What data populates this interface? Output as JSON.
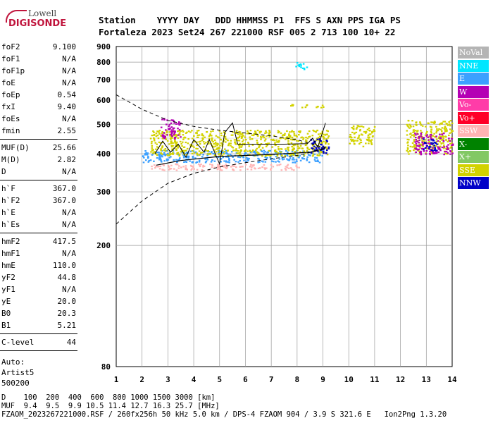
{
  "logo": {
    "line1": "Lowell",
    "line2": "DIGISONDE"
  },
  "header": {
    "labels": "Station    YYYY DAY   DDD HHMMSS P1  FFS S AXN PPS IGA PS",
    "values": "Fortaleza 2023 Set24 267 221000 RSF 005 2 713 100 10+ 22"
  },
  "params": {
    "group1": [
      {
        "name": "foF2",
        "value": "9.100"
      },
      {
        "name": "foF1",
        "value": "N/A"
      },
      {
        "name": "foF1p",
        "value": "N/A"
      },
      {
        "name": "foE",
        "value": "N/A"
      },
      {
        "name": "foEp",
        "value": "0.54"
      },
      {
        "name": "fxI",
        "value": "9.40"
      },
      {
        "name": "foEs",
        "value": "N/A"
      },
      {
        "name": "fmin",
        "value": "2.55"
      }
    ],
    "group2": [
      {
        "name": "MUF(D)",
        "value": "25.66"
      },
      {
        "name": "M(D)",
        "value": "2.82"
      },
      {
        "name": "D",
        "value": "N/A"
      }
    ],
    "group3": [
      {
        "name": "h`F",
        "value": "367.0"
      },
      {
        "name": "h`F2",
        "value": "367.0"
      },
      {
        "name": "h`E",
        "value": "N/A"
      },
      {
        "name": "h`Es",
        "value": "N/A"
      }
    ],
    "group4": [
      {
        "name": "hmF2",
        "value": "417.5"
      },
      {
        "name": "hmF1",
        "value": "N/A"
      },
      {
        "name": "hmE",
        "value": "110.0"
      },
      {
        "name": "yF2",
        "value": "44.8"
      },
      {
        "name": "yF1",
        "value": "N/A"
      },
      {
        "name": "yE",
        "value": "20.0"
      },
      {
        "name": "B0",
        "value": "20.3"
      },
      {
        "name": "B1",
        "value": "5.21"
      }
    ],
    "group5": [
      {
        "name": "C-level",
        "value": "44"
      }
    ],
    "auto": [
      "Auto:",
      "Artist5",
      "500200"
    ]
  },
  "legend": [
    {
      "label": "NoVal",
      "color": "#b4b4b4"
    },
    {
      "label": "NNE",
      "color": "#00e6ff"
    },
    {
      "label": "E",
      "color": "#3ca0ff"
    },
    {
      "label": "W",
      "color": "#b400b4"
    },
    {
      "label": "Vo-",
      "color": "#ff3ca8"
    },
    {
      "label": "Vo+",
      "color": "#ff0028"
    },
    {
      "label": "SSW",
      "color": "#ffb4b4"
    },
    {
      "label": "X-",
      "color": "#008200"
    },
    {
      "label": "X+",
      "color": "#82c864"
    },
    {
      "label": "SSE",
      "color": "#d2d200"
    },
    {
      "label": "NNW",
      "color": "#0000c8"
    }
  ],
  "footer": {
    "line1": "D    100  200  400  600  800 1000 1500 3000 [km]",
    "line2": "MUF  9.4  9.5  9.9 10.5 11.4 12.7 16.3 25.7 [MHz]",
    "line3": "FZAOM_2023267221000.RSF / 260fx256h 50 kHz 5.0 km / DPS-4 FZAOM 904 / 3.9 S 321.6 E   Ion2Png 1.3.20"
  },
  "chart_data": {
    "type": "scatter",
    "title": "",
    "xlabel": "",
    "ylabel": "",
    "xlim": [
      1,
      14
    ],
    "ylim": [
      80,
      900
    ],
    "x_ticks": [
      1,
      2,
      3,
      4,
      5,
      6,
      7,
      8,
      9,
      10,
      11,
      12,
      13,
      14
    ],
    "y_ticks": [
      80,
      200,
      300,
      400,
      500,
      600,
      700,
      800,
      900
    ],
    "y_scale": "log",
    "grid": true,
    "echo_clusters": [
      {
        "name": "SSW",
        "color": "#ffb4b4",
        "x": [
          2.3,
          8.2
        ],
        "y": [
          355,
          372
        ]
      },
      {
        "name": "E",
        "color": "#3ca0ff",
        "x": [
          2.0,
          9.0
        ],
        "y": [
          376,
          412
        ]
      },
      {
        "name": "SSE",
        "color": "#d2d200",
        "x": [
          2.3,
          9.2
        ],
        "y": [
          395,
          480
        ]
      },
      {
        "name": "W",
        "color": "#b400b4",
        "x": [
          2.7,
          3.5
        ],
        "y": [
          450,
          525
        ]
      },
      {
        "name": "SSE",
        "color": "#d2d200",
        "x": [
          7.7,
          9.0
        ],
        "y": [
          570,
          583
        ]
      },
      {
        "name": "NNE",
        "color": "#00e6ff",
        "x": [
          7.9,
          8.4
        ],
        "y": [
          760,
          800
        ]
      },
      {
        "name": "SSE",
        "color": "#d2d200",
        "x": [
          10.0,
          11.0
        ],
        "y": [
          425,
          500
        ]
      },
      {
        "name": "SSE",
        "color": "#d2d200",
        "x": [
          12.2,
          14.0
        ],
        "y": [
          400,
          520
        ]
      },
      {
        "name": "W",
        "color": "#b400b4",
        "x": [
          12.5,
          14.0
        ],
        "y": [
          400,
          470
        ]
      },
      {
        "name": "NNW",
        "color": "#0000c8",
        "x": [
          8.5,
          9.2
        ],
        "y": [
          400,
          450
        ]
      },
      {
        "name": "NNW",
        "color": "#0000c8",
        "x": [
          12.8,
          13.4
        ],
        "y": [
          410,
          450
        ]
      }
    ],
    "profile": [
      {
        "x": 2.55,
        "y": 367
      },
      {
        "x": 3.5,
        "y": 380
      },
      {
        "x": 5.0,
        "y": 392
      },
      {
        "x": 7.0,
        "y": 398
      },
      {
        "x": 8.5,
        "y": 405
      },
      {
        "x": 9.1,
        "y": 417.5
      }
    ],
    "virtual_trace": [
      {
        "x": 2.5,
        "y": 400
      },
      {
        "x": 2.8,
        "y": 440
      },
      {
        "x": 3.1,
        "y": 405
      },
      {
        "x": 3.4,
        "y": 430
      },
      {
        "x": 3.7,
        "y": 390
      },
      {
        "x": 4.0,
        "y": 445
      },
      {
        "x": 4.4,
        "y": 405
      },
      {
        "x": 4.6,
        "y": 445
      },
      {
        "x": 5.0,
        "y": 370
      },
      {
        "x": 5.2,
        "y": 470
      },
      {
        "x": 5.5,
        "y": 505
      },
      {
        "x": 5.7,
        "y": 430
      },
      {
        "x": 6.5,
        "y": 430
      },
      {
        "x": 7.5,
        "y": 430
      },
      {
        "x": 8.4,
        "y": 432
      },
      {
        "x": 8.6,
        "y": 450
      },
      {
        "x": 8.8,
        "y": 420
      },
      {
        "x": 9.1,
        "y": 505
      }
    ],
    "model_lower": [
      {
        "x": 1.0,
        "y": 235
      },
      {
        "x": 2.0,
        "y": 280
      },
      {
        "x": 3.0,
        "y": 320
      },
      {
        "x": 4.0,
        "y": 345
      },
      {
        "x": 5.0,
        "y": 362
      },
      {
        "x": 6.0,
        "y": 374
      },
      {
        "x": 7.0,
        "y": 385
      },
      {
        "x": 8.0,
        "y": 395
      },
      {
        "x": 9.1,
        "y": 415
      }
    ],
    "model_upper": [
      {
        "x": 1.0,
        "y": 625
      },
      {
        "x": 2.0,
        "y": 560
      },
      {
        "x": 3.0,
        "y": 515
      },
      {
        "x": 4.0,
        "y": 492
      },
      {
        "x": 5.0,
        "y": 478
      },
      {
        "x": 6.0,
        "y": 468
      },
      {
        "x": 7.0,
        "y": 458
      },
      {
        "x": 8.0,
        "y": 445
      },
      {
        "x": 9.1,
        "y": 418
      }
    ]
  }
}
